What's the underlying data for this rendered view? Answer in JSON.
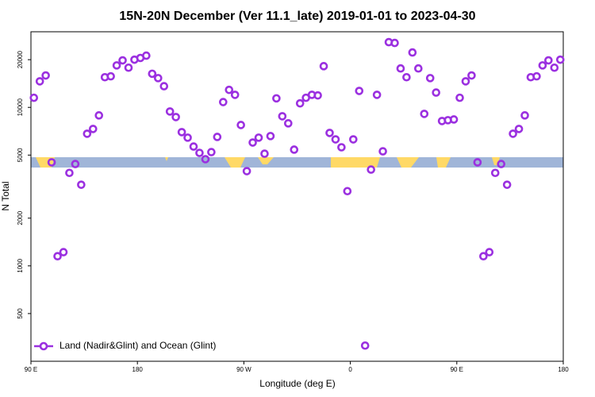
{
  "chart_data": {
    "type": "scatter",
    "title": "15N-20N December (Ver 11.1_late)   2019-01-01 to 2023-04-30",
    "x_label": "Longitude (deg E)",
    "y_label": "N Total",
    "log_y": true,
    "legend": "lower left",
    "xlim": [
      90,
      540
    ],
    "ylim": [
      250,
      30000
    ],
    "xticks": [
      {
        "value": 90,
        "label": "90 E"
      },
      180,
      {
        "value": 270,
        "label": "90 W"
      },
      {
        "value": 360,
        "label": "0"
      },
      {
        "value": 450,
        "label": "90 E"
      },
      {
        "value": 540,
        "label": "180"
      }
    ],
    "yticks": [
      500,
      1000,
      2000,
      5000,
      10000,
      20000
    ],
    "series": [
      {
        "name": "Land (Nadir&Glint) and Ocean (Glint)",
        "color": "#9b30e0",
        "x": [
          92.5,
          97.5,
          102.5,
          107.5,
          112.5,
          117.5,
          122.5,
          127.5,
          132.5,
          137.5,
          142.5,
          147.5,
          152.5,
          157.5,
          162.5,
          167.5,
          172.5,
          177.5,
          182.5,
          187.5,
          192.5,
          197.5,
          202.5,
          207.5,
          212.5,
          217.5,
          222.5,
          227.5,
          232.5,
          237.5,
          242.5,
          247.5,
          252.5,
          257.5,
          262.5,
          267.5,
          272.5,
          277.5,
          282.5,
          287.5,
          292.5,
          297.5,
          302.5,
          307.5,
          312.5,
          317.5,
          322.5,
          327.5,
          332.5,
          337.5,
          342.5,
          347.5,
          352.5,
          357.5,
          362.5,
          367.5,
          372.5,
          377.5,
          382.5,
          387.5,
          392.5,
          397.5,
          402.5,
          407.5,
          412.5,
          417.5,
          422.5,
          427.5,
          432.5,
          437.5,
          442.5,
          447.5,
          452.5,
          457.5,
          462.5,
          467.5,
          472.5,
          477.5,
          482.5,
          487.5,
          492.5,
          497.5,
          502.5,
          507.5,
          512.5,
          517.5,
          522.5,
          527.5,
          532.5,
          537.5
        ],
        "values": [
          11500,
          14600,
          15900,
          4500,
          1150,
          1220,
          3860,
          4390,
          3250,
          6820,
          7310,
          8900,
          15500,
          15700,
          18400,
          19800,
          17800,
          20000,
          20500,
          21200,
          16300,
          15300,
          13600,
          9420,
          8690,
          6980,
          6440,
          5660,
          5160,
          4710,
          5220,
          6510,
          10800,
          12900,
          12000,
          7740,
          3960,
          6000,
          6440,
          5100,
          6590,
          11400,
          8790,
          7930,
          5410,
          10600,
          11500,
          12000,
          11900,
          18200,
          6900,
          6280,
          5600,
          2960,
          6280,
          12700,
          314,
          4050,
          12000,
          5280,
          25800,
          25500,
          17600,
          15500,
          22200,
          17600,
          9100,
          15300,
          12400,
          8200,
          8300,
          8390,
          11500,
          14600,
          15900,
          4500,
          1150,
          1220,
          3860,
          4390,
          3250,
          6820,
          7310,
          8900,
          15500,
          15700,
          18400,
          19800,
          17800,
          20000
        ]
      }
    ]
  }
}
